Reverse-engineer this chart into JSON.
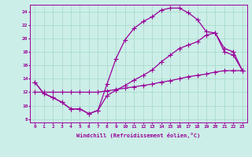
{
  "xlabel": "Windchill (Refroidissement éolien,°C)",
  "bg_color": "#cceee8",
  "line_color": "#990099",
  "grid_color": "#aadddd",
  "xlim": [
    -0.5,
    23.5
  ],
  "ylim": [
    7.5,
    25.0
  ],
  "xticks": [
    0,
    1,
    2,
    3,
    4,
    5,
    6,
    7,
    8,
    9,
    10,
    11,
    12,
    13,
    14,
    15,
    16,
    17,
    18,
    19,
    20,
    21,
    22,
    23
  ],
  "yticks": [
    8,
    10,
    12,
    14,
    16,
    18,
    20,
    22,
    24
  ],
  "line1_x": [
    0,
    1,
    2,
    3,
    4,
    5,
    6,
    7,
    8,
    9,
    10,
    11,
    12,
    13,
    14,
    15,
    16,
    17,
    18,
    19,
    20,
    21,
    22,
    23
  ],
  "line1_y": [
    13.5,
    11.8,
    11.2,
    10.5,
    9.5,
    9.5,
    8.8,
    9.3,
    13.2,
    17.0,
    19.8,
    21.5,
    22.5,
    23.2,
    24.2,
    24.5,
    24.5,
    23.8,
    22.8,
    21.0,
    20.8,
    18.0,
    17.5,
    15.2
  ],
  "line2_x": [
    0,
    1,
    2,
    3,
    4,
    5,
    6,
    7,
    8,
    9,
    10,
    11,
    12,
    13,
    14,
    15,
    16,
    17,
    18,
    19,
    20,
    21,
    22,
    23
  ],
  "line2_y": [
    13.5,
    11.8,
    11.2,
    10.5,
    9.5,
    9.5,
    8.8,
    9.3,
    11.5,
    12.3,
    13.0,
    13.8,
    14.5,
    15.3,
    16.5,
    17.5,
    18.5,
    19.0,
    19.5,
    20.5,
    20.8,
    18.5,
    18.0,
    15.2
  ],
  "line3_x": [
    0,
    1,
    2,
    3,
    4,
    5,
    6,
    7,
    8,
    9,
    10,
    11,
    12,
    13,
    14,
    15,
    16,
    17,
    18,
    19,
    20,
    21,
    22,
    23
  ],
  "line3_y": [
    12.0,
    12.0,
    12.0,
    12.0,
    12.0,
    12.0,
    12.0,
    12.0,
    12.2,
    12.4,
    12.6,
    12.8,
    13.0,
    13.2,
    13.5,
    13.7,
    14.0,
    14.3,
    14.5,
    14.7,
    15.0,
    15.2,
    15.2,
    15.2
  ]
}
